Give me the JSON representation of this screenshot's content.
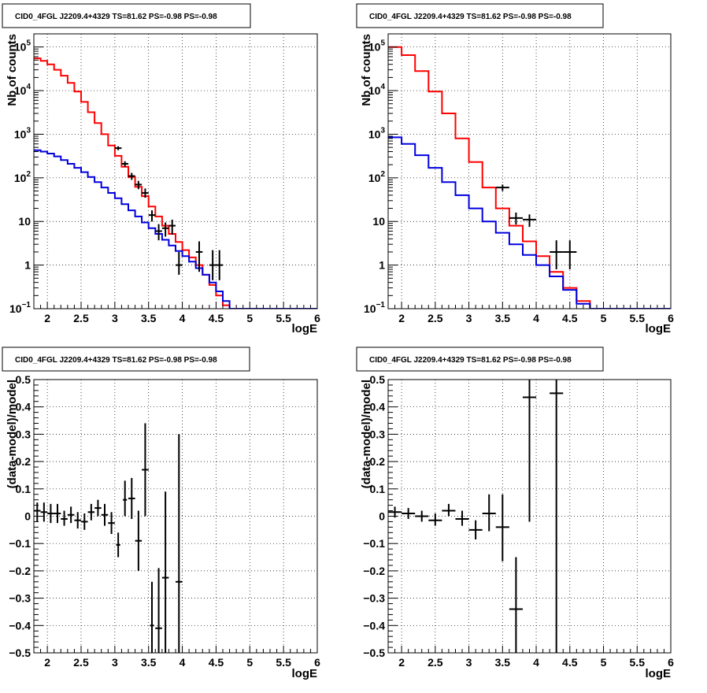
{
  "chart_data": [
    {
      "type": "line",
      "title": "CID0_4FGL J2209.4+4329 TS=81.62 PS=-0.98 PS=-0.98",
      "xlabel": "logE",
      "ylabel": "Nb of counts",
      "xlim": [
        1.8,
        6
      ],
      "ylim": [
        0.1,
        200000
      ],
      "yscale": "log",
      "grid": true,
      "x_ticks": [
        "2",
        "2.5",
        "3",
        "3.5",
        "4",
        "4.5",
        "5",
        "5.5",
        "6"
      ],
      "y_ticks": [
        {
          "v": 0.1,
          "base": "10",
          "exp": "−1"
        },
        {
          "v": 1,
          "base": "1",
          "exp": ""
        },
        {
          "v": 10,
          "base": "10",
          "exp": ""
        },
        {
          "v": 100,
          "base": "10",
          "exp": "2"
        },
        {
          "v": 1000,
          "base": "10",
          "exp": "3"
        },
        {
          "v": 10000,
          "base": "10",
          "exp": "4"
        },
        {
          "v": 100000,
          "base": "10",
          "exp": "5"
        }
      ],
      "series": [
        {
          "color": "#ff0000",
          "style": "hist",
          "edges": [
            1.8,
            1.9,
            2.0,
            2.1,
            2.2,
            2.3,
            2.4,
            2.5,
            2.6,
            2.7,
            2.8,
            2.9,
            3.0,
            3.1,
            3.2,
            3.3,
            3.4,
            3.5,
            3.6,
            3.7,
            3.8,
            3.9,
            4.0,
            4.1,
            4.2,
            4.3,
            4.4,
            4.5,
            4.6,
            4.7,
            4.8,
            4.9,
            5.0,
            5.1,
            5.2,
            5.3,
            5.4,
            5.5,
            5.6,
            5.7,
            5.8,
            5.9,
            6.0
          ],
          "values": [
            55000,
            48000,
            40000,
            30000,
            22000,
            15000,
            9500,
            5500,
            3200,
            1800,
            1000,
            550,
            320,
            180,
            105,
            62,
            38,
            22,
            13,
            8,
            5.2,
            3.4,
            2.2,
            1.5,
            1.0,
            0.6,
            0.35,
            0.2,
            0.12,
            0.1,
            0.1,
            0.1,
            0.1,
            0.1,
            0.1,
            0.1,
            0.1,
            0.1,
            0.1,
            0.1,
            0.1,
            0.1
          ]
        },
        {
          "color": "#0000dd",
          "style": "hist",
          "edges": [
            1.8,
            1.9,
            2.0,
            2.1,
            2.2,
            2.3,
            2.4,
            2.5,
            2.6,
            2.7,
            2.8,
            2.9,
            3.0,
            3.1,
            3.2,
            3.3,
            3.4,
            3.5,
            3.6,
            3.7,
            3.8,
            3.9,
            4.0,
            4.1,
            4.2,
            4.3,
            4.4,
            4.5,
            4.6,
            4.7,
            4.8,
            4.9,
            5.0,
            5.1,
            5.2,
            5.3,
            5.4,
            5.5,
            5.6,
            5.7,
            5.8,
            5.9,
            6.0
          ],
          "values": [
            430,
            400,
            360,
            310,
            255,
            210,
            170,
            135,
            105,
            80,
            60,
            45,
            34,
            25,
            18,
            13,
            9.5,
            7,
            5.2,
            3.8,
            2.8,
            2.1,
            1.6,
            1.2,
            0.85,
            0.6,
            0.4,
            0.25,
            0.15,
            0.1,
            0.1,
            0.1,
            0.1,
            0.1,
            0.1,
            0.1,
            0.1,
            0.1,
            0.1,
            0.1,
            0.1,
            0.1
          ]
        },
        {
          "color": "#000000",
          "style": "points",
          "points": [
            {
              "x": 3.05,
              "y": 480,
              "xe": 0.05,
              "lo": 430,
              "hi": 530
            },
            {
              "x": 3.15,
              "y": 210,
              "xe": 0.05,
              "lo": 180,
              "hi": 240
            },
            {
              "x": 3.25,
              "y": 110,
              "xe": 0.05,
              "lo": 90,
              "hi": 130
            },
            {
              "x": 3.35,
              "y": 70,
              "xe": 0.05,
              "lo": 55,
              "hi": 85
            },
            {
              "x": 3.45,
              "y": 45,
              "xe": 0.05,
              "lo": 35,
              "hi": 57
            },
            {
              "x": 3.55,
              "y": 14,
              "xe": 0.05,
              "lo": 10,
              "hi": 18
            },
            {
              "x": 3.65,
              "y": 6,
              "xe": 0.05,
              "lo": 3.7,
              "hi": 8.7
            },
            {
              "x": 3.75,
              "y": 7,
              "xe": 0.05,
              "lo": 4.5,
              "hi": 9.5
            },
            {
              "x": 3.85,
              "y": 8,
              "xe": 0.05,
              "lo": 5,
              "hi": 11
            },
            {
              "x": 3.95,
              "y": 1,
              "xe": 0.05,
              "lo": 0.6,
              "hi": 2
            },
            {
              "x": 4.25,
              "y": 2,
              "xe": 0.05,
              "lo": 0.7,
              "hi": 3.5
            },
            {
              "x": 4.45,
              "y": 1,
              "xe": 0.05,
              "lo": 0.45,
              "hi": 2.2
            },
            {
              "x": 4.55,
              "y": 1,
              "xe": 0.05,
              "lo": 0.45,
              "hi": 2.2
            }
          ]
        }
      ]
    },
    {
      "type": "line",
      "title": "CID0_4FGL J2209.4+4329 TS=81.62 PS=-0.98 PS=-0.98",
      "xlabel": "logE",
      "ylabel": "Nb of counts",
      "xlim": [
        1.8,
        6
      ],
      "ylim": [
        0.1,
        200000
      ],
      "yscale": "log",
      "grid": true,
      "x_ticks": [
        "2",
        "2.5",
        "3",
        "3.5",
        "4",
        "4.5",
        "5",
        "5.5",
        "6"
      ],
      "y_ticks": [
        {
          "v": 0.1,
          "base": "10",
          "exp": "−1"
        },
        {
          "v": 1,
          "base": "1",
          "exp": ""
        },
        {
          "v": 10,
          "base": "10",
          "exp": ""
        },
        {
          "v": 100,
          "base": "10",
          "exp": "2"
        },
        {
          "v": 1000,
          "base": "10",
          "exp": "3"
        },
        {
          "v": 10000,
          "base": "10",
          "exp": "4"
        },
        {
          "v": 100000,
          "base": "10",
          "exp": "5"
        }
      ],
      "series": [
        {
          "color": "#ff0000",
          "style": "hist",
          "edges": [
            1.8,
            2.0,
            2.2,
            2.4,
            2.6,
            2.8,
            3.0,
            3.2,
            3.4,
            3.6,
            3.8,
            4.0,
            4.2,
            4.4,
            4.6,
            4.8,
            5.0,
            5.2,
            5.4,
            5.6,
            5.8,
            6.0
          ],
          "values": [
            100000,
            65000,
            28000,
            9500,
            3000,
            800,
            230,
            60,
            20,
            8,
            3.5,
            1.6,
            0.7,
            0.3,
            0.15,
            0.1,
            0.1,
            0.1,
            0.1,
            0.1,
            0.1
          ]
        },
        {
          "color": "#0000dd",
          "style": "hist",
          "edges": [
            1.8,
            2.0,
            2.2,
            2.4,
            2.6,
            2.8,
            3.0,
            3.2,
            3.4,
            3.6,
            3.8,
            4.0,
            4.2,
            4.4,
            4.6,
            4.8,
            5.0,
            5.2,
            5.4,
            5.6,
            5.8,
            6.0
          ],
          "values": [
            850,
            600,
            330,
            170,
            80,
            40,
            20,
            10,
            5.5,
            3,
            1.7,
            1.0,
            0.55,
            0.27,
            0.13,
            0.1,
            0.1,
            0.1,
            0.1,
            0.1,
            0.1
          ]
        },
        {
          "color": "#000000",
          "style": "points",
          "points": [
            {
              "x": 3.5,
              "y": 60,
              "xe": 0.1,
              "lo": 50,
              "hi": 70
            },
            {
              "x": 3.7,
              "y": 12,
              "xe": 0.1,
              "lo": 8.5,
              "hi": 16
            },
            {
              "x": 3.9,
              "y": 11,
              "xe": 0.1,
              "lo": 7.5,
              "hi": 14.5
            },
            {
              "x": 4.3,
              "y": 2,
              "xe": 0.1,
              "lo": 0.8,
              "hi": 3.7
            },
            {
              "x": 4.5,
              "y": 2,
              "xe": 0.1,
              "lo": 0.8,
              "hi": 3.7
            }
          ]
        }
      ]
    },
    {
      "type": "scatter",
      "title": "CID0_4FGL J2209.4+4329 TS=81.62 PS=-0.98 PS=-0.98",
      "xlabel": "logE",
      "ylabel": "(data-model)/model",
      "xlim": [
        1.8,
        6
      ],
      "ylim": [
        -0.5,
        0.5
      ],
      "yscale": "linear",
      "grid": true,
      "x_ticks": [
        "2",
        "2.5",
        "3",
        "3.5",
        "4",
        "4.5",
        "5",
        "5.5",
        "6"
      ],
      "y_ticks": [
        {
          "v": -0.5,
          "base": "−0.5",
          "exp": ""
        },
        {
          "v": -0.4,
          "base": "−0.4",
          "exp": ""
        },
        {
          "v": -0.3,
          "base": "−0.3",
          "exp": ""
        },
        {
          "v": -0.2,
          "base": "−0.2",
          "exp": ""
        },
        {
          "v": -0.1,
          "base": "−0.1",
          "exp": ""
        },
        {
          "v": 0,
          "base": "0",
          "exp": ""
        },
        {
          "v": 0.1,
          "base": "0.1",
          "exp": ""
        },
        {
          "v": 0.2,
          "base": "0.2",
          "exp": ""
        },
        {
          "v": 0.3,
          "base": "0.3",
          "exp": ""
        },
        {
          "v": 0.4,
          "base": "0.4",
          "exp": ""
        },
        {
          "v": 0.5,
          "base": "0.5",
          "exp": ""
        }
      ],
      "series": [
        {
          "color": "#000000",
          "style": "points",
          "points": [
            {
              "x": 1.85,
              "y": 0.02,
              "xe": 0.05,
              "lo": -0.02,
              "hi": 0.05
            },
            {
              "x": 1.95,
              "y": 0.015,
              "xe": 0.05,
              "lo": -0.02,
              "hi": 0.05
            },
            {
              "x": 2.05,
              "y": 0.01,
              "xe": 0.05,
              "lo": -0.025,
              "hi": 0.045
            },
            {
              "x": 2.15,
              "y": 0.01,
              "xe": 0.05,
              "lo": -0.025,
              "hi": 0.045
            },
            {
              "x": 2.25,
              "y": -0.01,
              "xe": 0.05,
              "lo": -0.035,
              "hi": 0.02
            },
            {
              "x": 2.35,
              "y": 0.005,
              "xe": 0.05,
              "lo": -0.025,
              "hi": 0.035
            },
            {
              "x": 2.45,
              "y": -0.015,
              "xe": 0.05,
              "lo": -0.045,
              "hi": 0.015
            },
            {
              "x": 2.55,
              "y": -0.02,
              "xe": 0.05,
              "lo": -0.05,
              "hi": 0.01
            },
            {
              "x": 2.65,
              "y": 0.015,
              "xe": 0.05,
              "lo": -0.015,
              "hi": 0.045
            },
            {
              "x": 2.75,
              "y": 0.03,
              "xe": 0.05,
              "lo": 0.0,
              "hi": 0.06
            },
            {
              "x": 2.85,
              "y": 0.005,
              "xe": 0.05,
              "lo": -0.035,
              "hi": 0.045
            },
            {
              "x": 2.95,
              "y": -0.025,
              "xe": 0.05,
              "lo": -0.065,
              "hi": 0.015
            },
            {
              "x": 3.05,
              "y": -0.105,
              "xe": 0.03,
              "lo": -0.15,
              "hi": -0.06
            },
            {
              "x": 3.15,
              "y": 0.06,
              "xe": 0.03,
              "lo": 0.0,
              "hi": 0.13
            },
            {
              "x": 3.25,
              "y": 0.065,
              "xe": 0.05,
              "lo": -0.01,
              "hi": 0.14
            },
            {
              "x": 3.35,
              "y": -0.09,
              "xe": 0.05,
              "lo": -0.2,
              "hi": 0.02
            },
            {
              "x": 3.45,
              "y": 0.17,
              "xe": 0.05,
              "lo": 0.0,
              "hi": 0.34
            },
            {
              "x": 3.55,
              "y": -0.4,
              "xe": 0.03,
              "lo": -0.5,
              "hi": -0.24
            },
            {
              "x": 3.65,
              "y": -0.41,
              "xe": 0.05,
              "lo": -0.5,
              "hi": -0.19
            },
            {
              "x": 3.75,
              "y": -0.225,
              "xe": 0.05,
              "lo": -0.5,
              "hi": 0.09
            },
            {
              "x": 3.95,
              "y": -0.24,
              "xe": 0.05,
              "lo": -0.5,
              "hi": 0.3
            }
          ]
        }
      ]
    },
    {
      "type": "scatter",
      "title": "CID0_4FGL J2209.4+4329 TS=81.62 PS=-0.98 PS=-0.98",
      "xlabel": "logE",
      "ylabel": "(data-model)/model",
      "xlim": [
        1.8,
        6
      ],
      "ylim": [
        -0.5,
        0.5
      ],
      "yscale": "linear",
      "grid": true,
      "x_ticks": [
        "2",
        "2.5",
        "3",
        "3.5",
        "4",
        "4.5",
        "5",
        "5.5",
        "6"
      ],
      "y_ticks": [
        {
          "v": -0.5,
          "base": "−0.5",
          "exp": ""
        },
        {
          "v": -0.4,
          "base": "−0.4",
          "exp": ""
        },
        {
          "v": -0.3,
          "base": "−0.3",
          "exp": ""
        },
        {
          "v": -0.2,
          "base": "−0.2",
          "exp": ""
        },
        {
          "v": -0.1,
          "base": "−0.1",
          "exp": ""
        },
        {
          "v": 0,
          "base": "0",
          "exp": ""
        },
        {
          "v": 0.1,
          "base": "0.1",
          "exp": ""
        },
        {
          "v": 0.2,
          "base": "0.2",
          "exp": ""
        },
        {
          "v": 0.3,
          "base": "0.3",
          "exp": ""
        },
        {
          "v": 0.4,
          "base": "0.4",
          "exp": ""
        },
        {
          "v": 0.5,
          "base": "0.5",
          "exp": ""
        }
      ],
      "series": [
        {
          "color": "#000000",
          "style": "points",
          "points": [
            {
              "x": 1.9,
              "y": 0.015,
              "xe": 0.1,
              "lo": -0.005,
              "hi": 0.035
            },
            {
              "x": 2.1,
              "y": 0.01,
              "xe": 0.1,
              "lo": -0.01,
              "hi": 0.03
            },
            {
              "x": 2.3,
              "y": 0.0,
              "xe": 0.1,
              "lo": -0.02,
              "hi": 0.02
            },
            {
              "x": 2.5,
              "y": -0.015,
              "xe": 0.1,
              "lo": -0.035,
              "hi": 0.01
            },
            {
              "x": 2.7,
              "y": 0.02,
              "xe": 0.1,
              "lo": 0.0,
              "hi": 0.045
            },
            {
              "x": 2.9,
              "y": -0.01,
              "xe": 0.1,
              "lo": -0.035,
              "hi": 0.02
            },
            {
              "x": 3.1,
              "y": -0.05,
              "xe": 0.1,
              "lo": -0.085,
              "hi": -0.015
            },
            {
              "x": 3.3,
              "y": 0.01,
              "xe": 0.1,
              "lo": -0.055,
              "hi": 0.08
            },
            {
              "x": 3.5,
              "y": -0.04,
              "xe": 0.1,
              "lo": -0.165,
              "hi": 0.08
            },
            {
              "x": 3.7,
              "y": -0.34,
              "xe": 0.1,
              "lo": -0.5,
              "hi": -0.15
            },
            {
              "x": 3.9,
              "y": 0.435,
              "xe": 0.1,
              "lo": -0.02,
              "hi": 0.5
            },
            {
              "x": 4.3,
              "y": 0.45,
              "xe": 0.1,
              "lo": -0.5,
              "hi": 0.5
            }
          ]
        }
      ]
    }
  ]
}
